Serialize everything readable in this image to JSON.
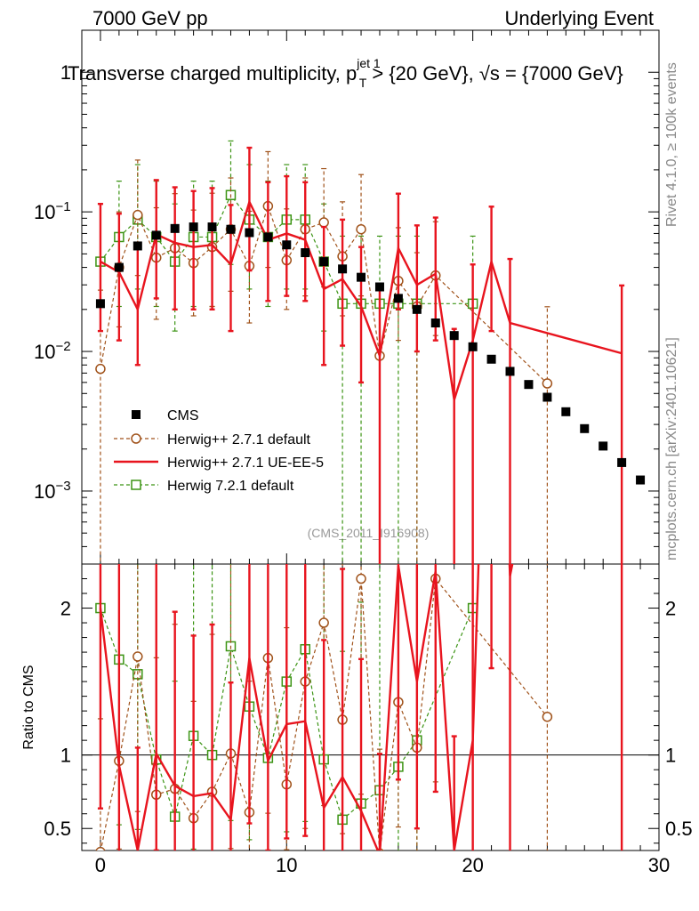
{
  "header": {
    "left": "7000 GeV pp",
    "right": "Underlying Event",
    "title_main": "Transverse charged multiplicity, p",
    "title_sup": "jet 1",
    "title_sub": "T",
    "title_rest": " > {20 GeV}, √s = {7000 GeV}"
  },
  "side_labels": {
    "rivet": "Rivet 4.1.0, ≥ 100k events",
    "mcplots": "mcplots.cern.ch [arXiv:2401.10621]"
  },
  "watermark": "(CMS_2011_I916908)",
  "ratio_ylabel": "Ratio to CMS",
  "colors": {
    "cms": "#000000",
    "hpp_default": "#a0521a",
    "hpp_ueee5": "#e8141e",
    "h7_default": "#3c9414"
  },
  "chart_data": {
    "type": "line",
    "main": {
      "yscale": "log",
      "ylim": [
        0.0003,
        2.0
      ],
      "xlim": [
        -1,
        30
      ],
      "ytick_labels": [
        "1",
        "10^-1",
        "10^-2",
        "10^-3"
      ],
      "ytick_values": [
        1,
        0.1,
        0.01,
        0.001
      ]
    },
    "ratio": {
      "ylim": [
        0.35,
        2.3
      ],
      "ytick_values": [
        0.5,
        1,
        2
      ],
      "ytick_labels": [
        "0.5",
        "1",
        "2"
      ]
    },
    "xticks": [
      0,
      10,
      20,
      30
    ],
    "xtick_labels": [
      "0",
      "10",
      "20",
      "30"
    ],
    "legend": [
      "CMS",
      "Herwig++ 2.7.1 default",
      "Herwig++ 2.7.1 UE-EE-5",
      "Herwig 7.2.1 default"
    ],
    "series": [
      {
        "name": "CMS",
        "x": [
          0,
          1,
          2,
          3,
          4,
          5,
          6,
          7,
          8,
          9,
          10,
          11,
          12,
          13,
          14,
          15,
          16,
          17,
          18,
          19,
          20,
          21,
          22,
          23,
          24,
          25,
          26,
          27,
          28,
          29
        ],
        "y": [
          0.022,
          0.04,
          0.057,
          0.068,
          0.076,
          0.078,
          0.078,
          0.075,
          0.071,
          0.066,
          0.058,
          0.051,
          0.044,
          0.039,
          0.034,
          0.029,
          0.024,
          0.02,
          0.016,
          0.013,
          0.0108,
          0.0088,
          0.0072,
          0.0058,
          0.0047,
          0.0037,
          0.0028,
          0.0021,
          0.0016,
          0.0012
        ]
      },
      {
        "name": "Herwig++ 2.7.1 default",
        "x": [
          0,
          1,
          2,
          3,
          4,
          5,
          6,
          7,
          8,
          9,
          10,
          11,
          12,
          13,
          14,
          15,
          16,
          17,
          18,
          24
        ],
        "y": [
          0.0075,
          0.04,
          0.095,
          0.047,
          0.055,
          0.043,
          0.056,
          0.075,
          0.041,
          0.11,
          0.045,
          0.075,
          0.084,
          0.048,
          0.075,
          0.0093,
          0.032,
          0.021,
          0.035,
          0.0059
        ],
        "err_lo": [
          0.0075,
          0.025,
          0.06,
          0.03,
          0.035,
          0.025,
          0.035,
          0.048,
          0.025,
          0.07,
          0.025,
          0.05,
          0.055,
          0.03,
          0.05,
          0.0093,
          0.02,
          0.021,
          0.022,
          0.0059
        ],
        "err_hi": [
          0.02,
          0.06,
          0.14,
          0.06,
          0.08,
          0.06,
          0.08,
          0.1,
          0.06,
          0.16,
          0.06,
          0.1,
          0.12,
          0.07,
          0.11,
          0.02,
          0.045,
          0.03,
          0.05,
          0.015
        ],
        "ratio": [
          0.34,
          0.96,
          1.67,
          0.73,
          0.77,
          0.57,
          0.75,
          1.01,
          0.61,
          1.66,
          0.8,
          1.5,
          1.9,
          1.24,
          2.2,
          0.33,
          1.36,
          1.05,
          2.2,
          1.26
        ]
      },
      {
        "name": "Herwig++ 2.7.1 UE-EE-5",
        "x": [
          0,
          1,
          2,
          3,
          4,
          5,
          6,
          7,
          8,
          9,
          10,
          11,
          12,
          13,
          14,
          15,
          16,
          17,
          18,
          19,
          20,
          21,
          22,
          28
        ],
        "y": [
          0.044,
          0.037,
          0.02,
          0.069,
          0.06,
          0.056,
          0.058,
          0.042,
          0.118,
          0.063,
          0.07,
          0.063,
          0.028,
          0.033,
          0.021,
          0.0093,
          0.055,
          0.03,
          0.036,
          0.0045,
          0.012,
          0.044,
          0.016,
          0.0097
        ],
        "err_lo": [
          0.03,
          0.025,
          0.012,
          0.045,
          0.04,
          0.036,
          0.038,
          0.028,
          0.08,
          0.04,
          0.045,
          0.04,
          0.02,
          0.022,
          0.015,
          0.0093,
          0.035,
          0.02,
          0.024,
          0.0045,
          0.012,
          0.03,
          0.016,
          0.0097
        ],
        "err_hi": [
          0.07,
          0.06,
          0.04,
          0.1,
          0.09,
          0.085,
          0.09,
          0.07,
          0.17,
          0.1,
          0.11,
          0.1,
          0.05,
          0.055,
          0.035,
          0.02,
          0.08,
          0.05,
          0.055,
          0.01,
          0.03,
          0.065,
          0.03,
          0.02
        ],
        "ratio": [
          2.0,
          0.93,
          0.35,
          1.01,
          0.79,
          0.72,
          0.74,
          0.56,
          1.66,
          0.96,
          1.21,
          1.23,
          0.64,
          0.85,
          0.62,
          0.32,
          2.29,
          1.5,
          2.25,
          0.35,
          1.1,
          5.0,
          2.22,
          6.0
        ]
      },
      {
        "name": "Herwig 7.2.1 default",
        "x": [
          0,
          1,
          2,
          3,
          4,
          5,
          6,
          7,
          8,
          9,
          10,
          11,
          12,
          13,
          14,
          15,
          16,
          17,
          20
        ],
        "y": [
          0.044,
          0.066,
          0.088,
          0.066,
          0.044,
          0.066,
          0.066,
          0.132,
          0.088,
          0.066,
          0.088,
          0.088,
          0.044,
          0.022,
          0.022,
          0.022,
          0.022,
          0.022,
          0.022
        ],
        "err_lo": [
          0.03,
          0.045,
          0.06,
          0.045,
          0.03,
          0.045,
          0.045,
          0.09,
          0.06,
          0.045,
          0.06,
          0.06,
          0.03,
          0.022,
          0.022,
          0.022,
          0.022,
          0.022,
          0.022
        ],
        "err_hi": [
          0.07,
          0.1,
          0.13,
          0.1,
          0.07,
          0.1,
          0.1,
          0.19,
          0.13,
          0.1,
          0.13,
          0.13,
          0.07,
          0.045,
          0.045,
          0.045,
          0.045,
          0.045,
          0.045
        ],
        "ratio": [
          2.0,
          1.65,
          1.55,
          0.97,
          0.58,
          1.13,
          1.0,
          1.74,
          1.33,
          0.98,
          1.5,
          1.72,
          0.97,
          0.56,
          0.67,
          0.76,
          0.92,
          1.1,
          2.0
        ]
      }
    ]
  }
}
